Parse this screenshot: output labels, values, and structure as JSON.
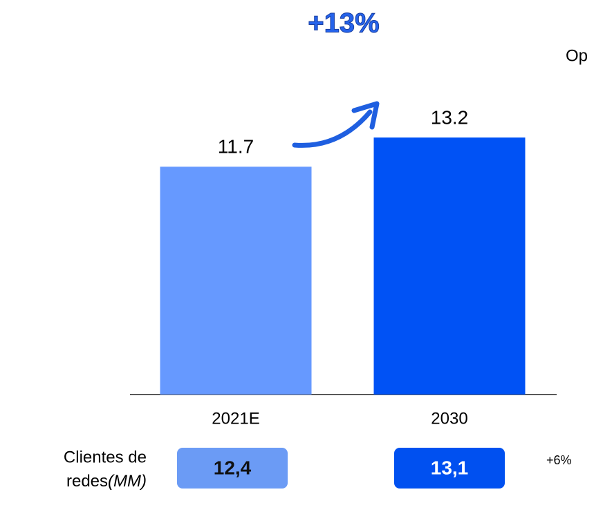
{
  "chart_data": {
    "type": "bar",
    "categories": [
      "2021E",
      "2030"
    ],
    "values": [
      11.7,
      13.2
    ],
    "colors": [
      "#6699ff",
      "#0052f5"
    ],
    "annotations": {
      "growth": "+13%",
      "cut_text": "Op"
    },
    "clients": {
      "label_line1": "Clientes de",
      "label_line2": "redes",
      "label_unit": "(MM)",
      "values": [
        12.4,
        13.1
      ],
      "value_labels": [
        "12,4",
        "13,1"
      ],
      "colors": [
        "#6b9bf5",
        "#0050f0"
      ],
      "change": "+6%"
    }
  }
}
